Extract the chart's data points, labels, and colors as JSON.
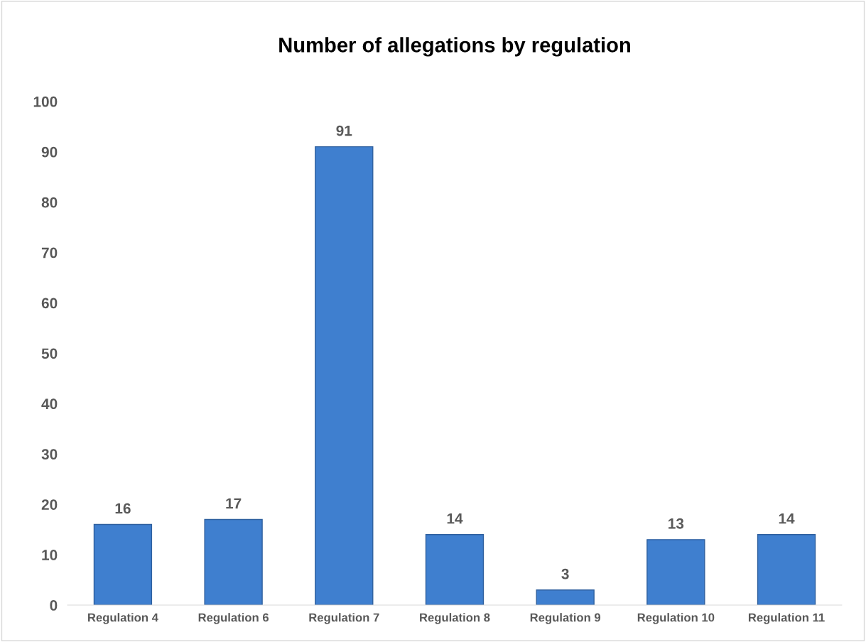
{
  "chart_data": {
    "type": "bar",
    "title": "Number of allegations by regulation",
    "categories": [
      "Regulation 4",
      "Regulation 6",
      "Regulation 7",
      "Regulation 8",
      "Regulation 9",
      "Regulation 10",
      "Regulation 11"
    ],
    "values": [
      16,
      17,
      91,
      14,
      3,
      13,
      14
    ],
    "color": "#3f7fcf",
    "ylim": [
      0,
      100
    ],
    "yticks": [
      0,
      10,
      20,
      30,
      40,
      50,
      60,
      70,
      80,
      90,
      100
    ],
    "grid": false,
    "data_labels": true
  }
}
